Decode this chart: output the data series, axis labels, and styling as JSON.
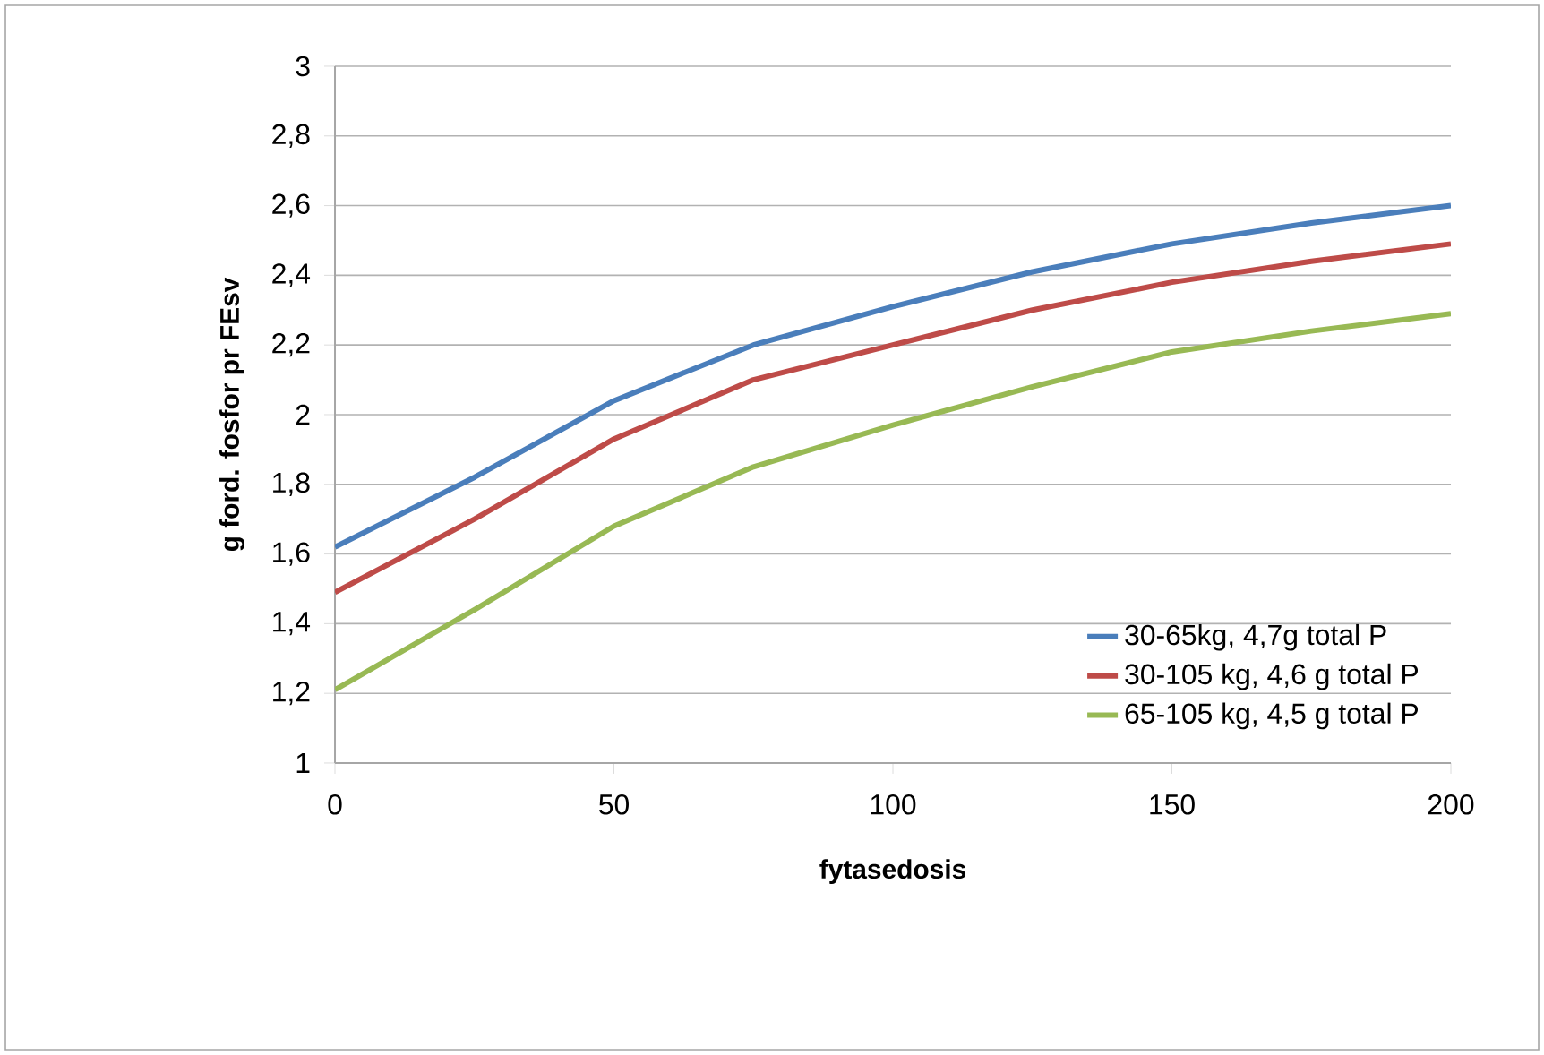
{
  "chart_data": {
    "type": "line",
    "xlabel": "fytasedosis",
    "ylabel": "g  ford. fosfor pr FEsv",
    "x": [
      0,
      25,
      50,
      75,
      100,
      125,
      150,
      175,
      200
    ],
    "series": [
      {
        "name": "30-65kg, 4,7g total P",
        "color": "#4a7ebb",
        "values": [
          1.62,
          1.82,
          2.04,
          2.2,
          2.31,
          2.41,
          2.49,
          2.55,
          2.6
        ]
      },
      {
        "name": "30-105 kg, 4,6 g total P",
        "color": "#be4b48",
        "values": [
          1.49,
          1.7,
          1.93,
          2.1,
          2.2,
          2.3,
          2.38,
          2.44,
          2.49
        ]
      },
      {
        "name": "65-105 kg, 4,5 g total P",
        "color": "#98b954",
        "values": [
          1.21,
          1.44,
          1.68,
          1.85,
          1.97,
          2.08,
          2.18,
          2.24,
          2.29
        ]
      }
    ],
    "xlim": [
      0,
      200
    ],
    "xticks": [
      0,
      50,
      100,
      150,
      200
    ],
    "ylim": [
      1,
      3
    ],
    "yticks": [
      1,
      {
        "value": 1.2,
        "label": "1,2"
      },
      {
        "value": 1.4,
        "label": "1,4"
      },
      {
        "value": 1.6,
        "label": "1,6"
      },
      {
        "value": 1.8,
        "label": "1,8"
      },
      2,
      {
        "value": 2.2,
        "label": "2,2"
      },
      {
        "value": 2.4,
        "label": "2,4"
      },
      {
        "value": 2.6,
        "label": "2,6"
      },
      {
        "value": 2.8,
        "label": "2,8"
      },
      3
    ],
    "grid": "y",
    "legend": "bottom right",
    "marker": "none",
    "line_style": "solid"
  }
}
